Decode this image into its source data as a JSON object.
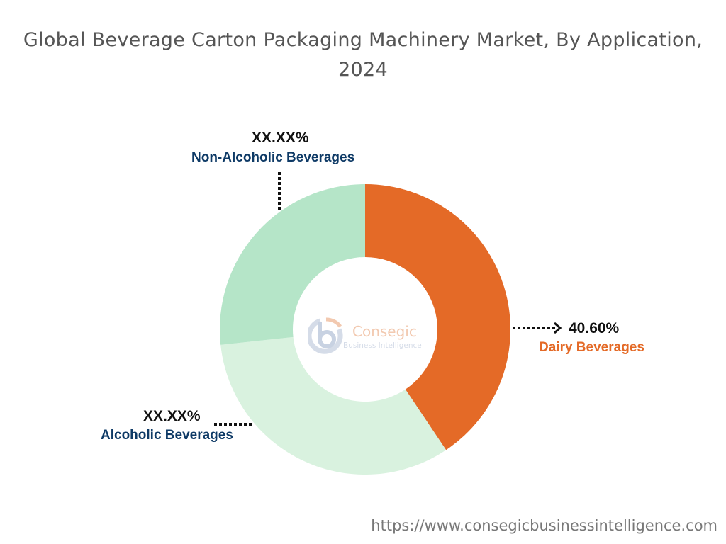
{
  "chart_data": {
    "type": "pie",
    "variant": "donut",
    "title": "Global Beverage Carton Packaging Machinery Market, By Application, 2024",
    "categories": [
      "Dairy Beverages",
      "Alcoholic Beverages",
      "Non-Alcoholic Beverages"
    ],
    "values": [
      40.6,
      32.7,
      26.7
    ],
    "value_labels": [
      "40.60%",
      "XX.XX%",
      "XX.XX%"
    ],
    "colors": [
      "#E46A27",
      "#D9F2DF",
      "#B5E5C8"
    ],
    "label_colors": [
      "#E46A27",
      "#0E3A66",
      "#0E3A66"
    ],
    "legend": "none"
  },
  "watermark": {
    "name": "Consegic",
    "tagline": "Business Intelligence"
  },
  "footer": {
    "url": "https://www.consegicbusinessintelligence.com"
  }
}
